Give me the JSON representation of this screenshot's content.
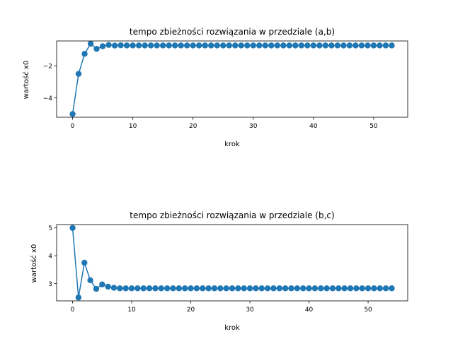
{
  "chart_data": [
    {
      "type": "line",
      "title": "tempo zbieżności rozwiązania w przedziale (a,b)",
      "xlabel": "krok",
      "ylabel": "wartość x0",
      "xlim": [
        -2.65,
        55.65
      ],
      "ylim": [
        -5.2,
        -0.45
      ],
      "xticks": [
        0,
        10,
        20,
        30,
        40,
        50
      ],
      "yticks": [
        -4,
        -2
      ],
      "marker": "circle",
      "color": "#1f77b4",
      "series": [
        {
          "x": [
            0,
            1,
            2,
            3,
            4,
            5,
            6,
            7,
            8,
            9,
            10,
            11,
            12,
            13,
            14,
            15,
            16,
            17,
            18,
            19,
            20,
            21,
            22,
            23,
            24,
            25,
            26,
            27,
            28,
            29,
            30,
            31,
            32,
            33,
            34,
            35,
            36,
            37,
            38,
            39,
            40,
            41,
            42,
            43,
            44,
            45,
            46,
            47,
            48,
            49,
            50,
            51,
            52,
            53
          ],
          "values": [
            -5.0,
            -2.5,
            -1.25,
            -0.62,
            -0.94,
            -0.78,
            -0.7,
            -0.74,
            -0.72,
            -0.73,
            -0.73,
            -0.73,
            -0.73,
            -0.73,
            -0.73,
            -0.73,
            -0.73,
            -0.73,
            -0.73,
            -0.73,
            -0.73,
            -0.73,
            -0.73,
            -0.73,
            -0.73,
            -0.73,
            -0.73,
            -0.73,
            -0.73,
            -0.73,
            -0.73,
            -0.73,
            -0.73,
            -0.73,
            -0.73,
            -0.73,
            -0.73,
            -0.73,
            -0.73,
            -0.73,
            -0.73,
            -0.73,
            -0.73,
            -0.73,
            -0.73,
            -0.73,
            -0.73,
            -0.73,
            -0.73,
            -0.73,
            -0.73,
            -0.73,
            -0.73,
            -0.73
          ]
        }
      ]
    },
    {
      "type": "line",
      "title": "tempo zbieżności rozwiązania w przedziale (b,c)",
      "xlabel": "krok",
      "ylabel": "wartość x0",
      "xlim": [
        -2.7,
        56.7
      ],
      "ylim": [
        2.38,
        5.12
      ],
      "xticks": [
        0,
        10,
        20,
        30,
        40,
        50
      ],
      "yticks": [
        3,
        4,
        5
      ],
      "marker": "circle",
      "color": "#1f77b4",
      "series": [
        {
          "x": [
            0,
            1,
            2,
            3,
            4,
            5,
            6,
            7,
            8,
            9,
            10,
            11,
            12,
            13,
            14,
            15,
            16,
            17,
            18,
            19,
            20,
            21,
            22,
            23,
            24,
            25,
            26,
            27,
            28,
            29,
            30,
            31,
            32,
            33,
            34,
            35,
            36,
            37,
            38,
            39,
            40,
            41,
            42,
            43,
            44,
            45,
            46,
            47,
            48,
            49,
            50,
            51,
            52,
            53,
            54
          ],
          "values": [
            5.0,
            2.5,
            3.75,
            3.12,
            2.81,
            2.97,
            2.89,
            2.85,
            2.83,
            2.83,
            2.83,
            2.83,
            2.83,
            2.83,
            2.83,
            2.83,
            2.83,
            2.83,
            2.83,
            2.83,
            2.83,
            2.83,
            2.83,
            2.83,
            2.83,
            2.83,
            2.83,
            2.83,
            2.83,
            2.83,
            2.83,
            2.83,
            2.83,
            2.83,
            2.83,
            2.83,
            2.83,
            2.83,
            2.83,
            2.83,
            2.83,
            2.83,
            2.83,
            2.83,
            2.83,
            2.83,
            2.83,
            2.83,
            2.83,
            2.83,
            2.83,
            2.83,
            2.83,
            2.83,
            2.83
          ]
        }
      ]
    }
  ]
}
